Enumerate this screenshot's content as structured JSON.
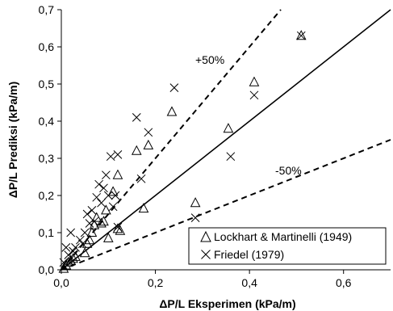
{
  "chart_data": {
    "type": "scatter",
    "xlabel": "ΔP/L Eksperimen (kPa/m)",
    "ylabel": "ΔP/L Prediksi (kPa/m)",
    "xlim": [
      0,
      0.7
    ],
    "ylim": [
      0,
      0.7
    ],
    "x_ticks": [
      "0,0",
      "0,2",
      "0,4",
      "0,6"
    ],
    "y_ticks": [
      "0,0",
      "0,1",
      "0,2",
      "0,3",
      "0,4",
      "0,5",
      "0,6",
      "0,7"
    ],
    "grid": false,
    "legend_position": "bottom-right",
    "reference_lines": [
      {
        "kind": "solid",
        "slope": 1.0
      },
      {
        "kind": "dashed",
        "slope": 1.5,
        "label": "+50%"
      },
      {
        "kind": "dashed",
        "slope": 0.5,
        "label": "-50%"
      }
    ],
    "series": [
      {
        "name": "Lockhart & Martinelli (1949)",
        "marker": "triangle",
        "points": [
          [
            0.005,
            0.003
          ],
          [
            0.01,
            0.012
          ],
          [
            0.015,
            0.02
          ],
          [
            0.02,
            0.025
          ],
          [
            0.025,
            0.03
          ],
          [
            0.03,
            0.035
          ],
          [
            0.05,
            0.045
          ],
          [
            0.055,
            0.07
          ],
          [
            0.06,
            0.08
          ],
          [
            0.065,
            0.1
          ],
          [
            0.07,
            0.12
          ],
          [
            0.075,
            0.14
          ],
          [
            0.085,
            0.125
          ],
          [
            0.09,
            0.13
          ],
          [
            0.095,
            0.16
          ],
          [
            0.1,
            0.085
          ],
          [
            0.11,
            0.21
          ],
          [
            0.12,
            0.255
          ],
          [
            0.12,
            0.11
          ],
          [
            0.125,
            0.105
          ],
          [
            0.16,
            0.32
          ],
          [
            0.175,
            0.165
          ],
          [
            0.185,
            0.335
          ],
          [
            0.235,
            0.425
          ],
          [
            0.285,
            0.18
          ],
          [
            0.355,
            0.38
          ],
          [
            0.41,
            0.505
          ],
          [
            0.51,
            0.63
          ]
        ]
      },
      {
        "name": "Friedel (1979)",
        "marker": "x",
        "points": [
          [
            0.005,
            0.02
          ],
          [
            0.01,
            0.06
          ],
          [
            0.015,
            0.04
          ],
          [
            0.02,
            0.1
          ],
          [
            0.025,
            0.05
          ],
          [
            0.03,
            0.06
          ],
          [
            0.04,
            0.08
          ],
          [
            0.045,
            0.07
          ],
          [
            0.05,
            0.1
          ],
          [
            0.055,
            0.15
          ],
          [
            0.06,
            0.125
          ],
          [
            0.065,
            0.16
          ],
          [
            0.07,
            0.13
          ],
          [
            0.075,
            0.195
          ],
          [
            0.08,
            0.23
          ],
          [
            0.085,
            0.18
          ],
          [
            0.09,
            0.22
          ],
          [
            0.095,
            0.255
          ],
          [
            0.1,
            0.2
          ],
          [
            0.105,
            0.305
          ],
          [
            0.11,
            0.17
          ],
          [
            0.115,
            0.2
          ],
          [
            0.12,
            0.31
          ],
          [
            0.12,
            0.115
          ],
          [
            0.16,
            0.41
          ],
          [
            0.17,
            0.245
          ],
          [
            0.185,
            0.37
          ],
          [
            0.24,
            0.49
          ],
          [
            0.285,
            0.14
          ],
          [
            0.36,
            0.305
          ],
          [
            0.41,
            0.47
          ],
          [
            0.51,
            0.63
          ]
        ]
      }
    ]
  }
}
